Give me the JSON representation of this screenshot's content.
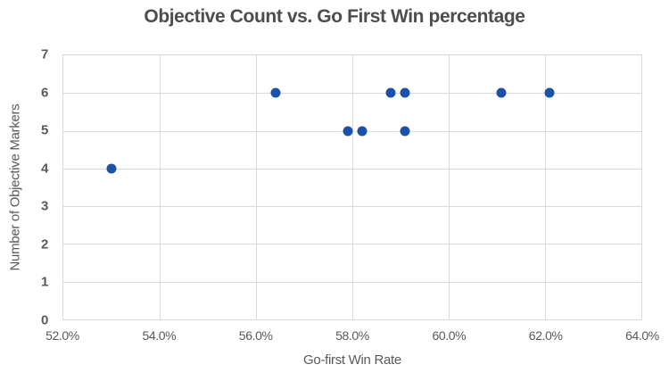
{
  "chart_data": {
    "type": "scatter",
    "title": "Objective Count vs. Go First Win percentage",
    "xlabel": "Go-first Win Rate",
    "ylabel": "Number of Objective Markers",
    "xlim": [
      52,
      64
    ],
    "ylim": [
      0,
      7
    ],
    "x_tick_values": [
      52,
      54,
      56,
      58,
      60,
      62,
      64
    ],
    "x_tick_labels": [
      "52.0%",
      "54.0%",
      "56.0%",
      "58.0%",
      "60.0%",
      "62.0%",
      "64.0%"
    ],
    "y_tick_values": [
      0,
      1,
      2,
      3,
      4,
      5,
      6,
      7
    ],
    "y_tick_labels": [
      "0",
      "1",
      "2",
      "3",
      "4",
      "5",
      "6",
      "7"
    ],
    "points": [
      {
        "x": 53.0,
        "y": 4
      },
      {
        "x": 56.4,
        "y": 6
      },
      {
        "x": 57.9,
        "y": 5
      },
      {
        "x": 58.2,
        "y": 5
      },
      {
        "x": 58.8,
        "y": 6
      },
      {
        "x": 59.1,
        "y": 6
      },
      {
        "x": 59.1,
        "y": 5
      },
      {
        "x": 61.1,
        "y": 6
      },
      {
        "x": 62.1,
        "y": 6
      }
    ],
    "marker_color": "#1a52a8",
    "grid": true,
    "gridline_color": "#d9d9d9",
    "legend": "none"
  }
}
